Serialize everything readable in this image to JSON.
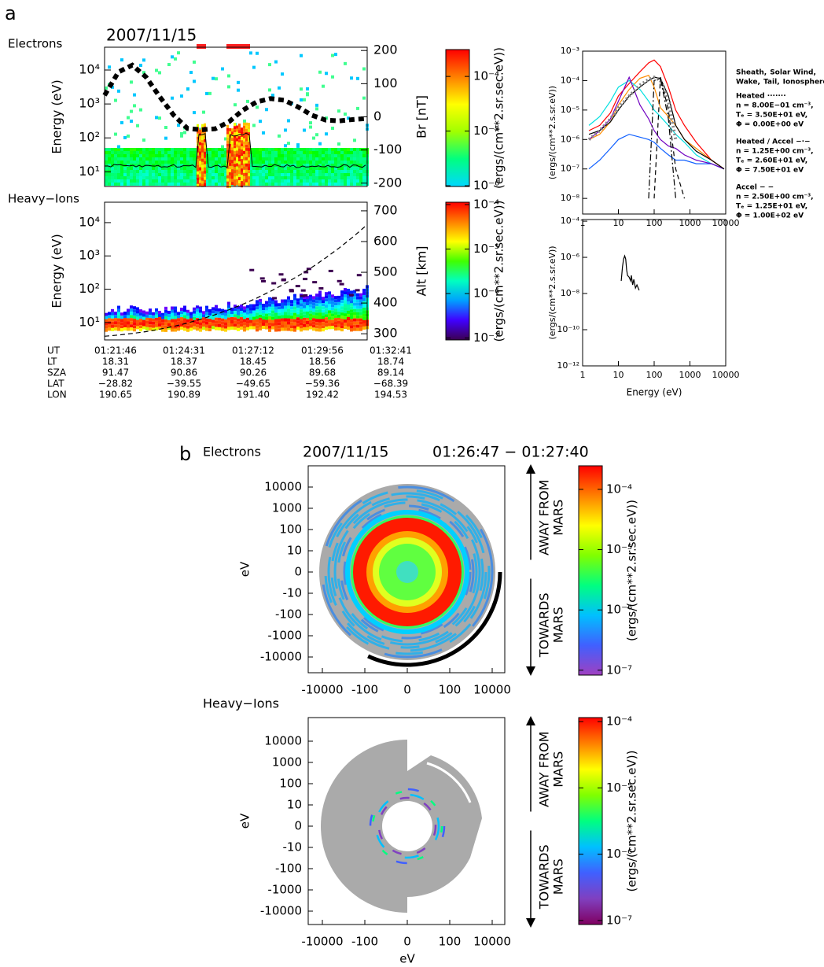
{
  "panel_labels": [
    "a",
    "b"
  ],
  "chart_data": [
    {
      "type": "spectrogram",
      "label": "Electrons",
      "title": "2007/11/15",
      "ylabel": "Energy (eV)",
      "log_scale": true,
      "ylim": [
        3.7,
        47000
      ],
      "yticks": [
        {
          "value": 10,
          "label": "10¹"
        },
        {
          "value": 100,
          "label": "10²"
        },
        {
          "value": 1000,
          "label": "10³"
        },
        {
          "value": 10000,
          "label": "10⁴"
        }
      ],
      "y2label": "Br [nT]",
      "y2lim": [
        -210,
        210
      ],
      "y2ticks": [
        -200,
        -100,
        0,
        100,
        200
      ],
      "series": [
        {
          "axis": "y2",
          "color": "#000000",
          "style": "thick-dotted",
          "values": [
            65,
            135,
            156,
            120,
            60,
            5,
            -35,
            -39,
            -36,
            -15,
            20,
            45,
            55,
            50,
            30,
            5,
            -10,
            -12,
            -8,
            -5
          ]
        }
      ],
      "colorbar": {
        "label": "(ergs/(cm**2.sr.sec.eV))",
        "clim": [
          9.7e-07,
          0.00031
        ],
        "colors": [
          "#00d8ff",
          "#00ff80",
          "#a0ff00",
          "#ffff00",
          "#ff8000",
          "#ff0000"
        ],
        "ticks": [
          {
            "value": 1e-06,
            "label": "10⁻⁶"
          },
          {
            "value": 1e-05,
            "label": "10⁻⁵"
          },
          {
            "value": 0.0001,
            "label": "10⁻⁴"
          }
        ]
      }
    },
    {
      "type": "spectrogram",
      "label": "Heavy−Ions",
      "ylabel": "Energy (eV)",
      "log_scale": true,
      "ylim": [
        3.0,
        41000
      ],
      "yticks": [
        {
          "value": 10,
          "label": "10¹"
        },
        {
          "value": 100,
          "label": "10²"
        },
        {
          "value": 1000,
          "label": "10³"
        },
        {
          "value": 10000,
          "label": "10⁴"
        }
      ],
      "y2label": "Alt [km]",
      "y2lim": [
        280,
        728
      ],
      "y2ticks": [
        300,
        400,
        500,
        600,
        700
      ],
      "series": [
        {
          "axis": "y2",
          "color": "#000000",
          "style": "dashed",
          "values": [
            292,
            296,
            301,
            307,
            315,
            324,
            335,
            348,
            362,
            378,
            396,
            416,
            438,
            462,
            488,
            516,
            547,
            580,
            616,
            655
          ]
        }
      ],
      "colorbar": {
        "label": "(ergs/(cm**2.sr.sec.eV))",
        "clim": [
          9.1e-08,
          0.000113
        ],
        "colors": [
          "#3c0050",
          "#4000ff",
          "#00a0ff",
          "#00ffc0",
          "#40ff00",
          "#ffff00",
          "#ff8000",
          "#ff0000"
        ],
        "ticks": [
          {
            "value": 1e-07,
            "label": "10⁻⁷"
          },
          {
            "value": 1e-06,
            "label": "10⁻⁶"
          },
          {
            "value": 1e-05,
            "label": "10⁻⁵"
          },
          {
            "value": 0.0001,
            "label": "10⁻⁴"
          }
        ]
      }
    },
    {
      "type": "line",
      "ylabel": "(ergs/(cm**2.s.sr.eV))",
      "log_scale": true,
      "xlim": [
        1,
        10000
      ],
      "ylim": [
        2.95e-09,
        0.001
      ],
      "xticks": [
        1,
        10,
        100,
        1000,
        10000
      ],
      "yticks": [
        {
          "value": 1e-08,
          "label": "10⁻⁸"
        },
        {
          "value": 1e-07,
          "label": "10⁻⁷"
        },
        {
          "value": 1e-06,
          "label": "10⁻⁶"
        },
        {
          "value": 1e-05,
          "label": "10⁻⁵"
        },
        {
          "value": 0.0001,
          "label": "10⁻⁴"
        },
        {
          "value": 0.001,
          "label": "10⁻³"
        }
      ],
      "x": [
        1.5,
        3,
        6,
        10,
        20,
        40,
        70,
        100,
        150,
        250,
        400,
        700,
        1500,
        4000,
        9000
      ],
      "series": [
        {
          "name": "Sheath,",
          "color": "#ff0000",
          "values": [
            2e-06,
            3e-06,
            8e-06,
            3e-05,
            8e-05,
            0.0002,
            0.0004,
            0.0005,
            0.0003,
            6e-05,
            1e-05,
            3e-06,
            8e-07,
            2e-07,
            1e-07
          ]
        },
        {
          "name": "Solar Wind,",
          "color": "#ff8c00",
          "values": [
            1e-06,
            1.5e-06,
            4e-06,
            1.5e-05,
            5e-05,
            0.00012,
            0.00015,
            6e-05,
            1.2e-05,
            6e-06,
            3e-06,
            1e-06,
            5e-07,
            2e-07,
            1e-07
          ]
        },
        {
          "name": "Wake,",
          "color": "#00e0e0",
          "values": [
            3e-06,
            6e-06,
            2e-05,
            6e-05,
            0.0001,
            5e-05,
            2e-05,
            1e-05,
            6e-06,
            3e-06,
            1.5e-06,
            8e-07,
            3e-07,
            1.5e-07,
            1e-07
          ]
        },
        {
          "name": "Tail,",
          "color": "#1060ff",
          "values": [
            1e-07,
            2e-07,
            5e-07,
            1e-06,
            1.5e-06,
            1.2e-06,
            1e-06,
            8e-07,
            5e-07,
            3e-07,
            2e-07,
            2e-07,
            1.5e-07,
            1.5e-07,
            1e-07
          ]
        },
        {
          "name": "Ionosphere",
          "color": "#7000c0",
          "values": [
            1e-06,
            2e-06,
            5e-06,
            2e-05,
            0.00013,
            1.5e-05,
            5e-06,
            2e-06,
            1e-06,
            6e-07,
            5e-07,
            3e-07,
            2e-07,
            1.5e-07,
            1e-07
          ]
        },
        {
          "color": "#000000",
          "style": "solid",
          "values": [
            1.5e-06,
            2e-06,
            4e-06,
            1e-05,
            3e-05,
            6e-05,
            0.0001,
            0.00013,
            0.00012,
            3e-05,
            3e-06,
            1e-06,
            4e-07,
            2e-07,
            1e-07
          ]
        },
        {
          "color": "#888888",
          "style": "dotted",
          "values": [
            1e-06,
            2e-06,
            5e-06,
            1.2e-05,
            3e-05,
            7e-05,
            0.00011,
            0.00013,
            0.0001,
            2e-05,
            1e-06,
            null,
            null,
            null,
            null
          ]
        },
        {
          "color": "#000000",
          "style": "dashdot",
          "values": [
            null,
            null,
            null,
            null,
            null,
            null,
            1e-08,
            0.0001,
            0.00012,
            5e-06,
            1e-08,
            null,
            null,
            null,
            null
          ]
        },
        {
          "color": "#000000",
          "style": "dashed",
          "values": [
            null,
            null,
            null,
            null,
            null,
            null,
            null,
            1e-08,
            0.00013,
            1e-05,
            1e-07,
            1e-08,
            null,
            null,
            null
          ]
        }
      ]
    },
    {
      "type": "line",
      "xlabel": "Energy (eV)",
      "ylabel": "(ergs/(cm**2.s.sr.eV))",
      "log_scale": true,
      "xlim": [
        1,
        10000
      ],
      "ylim": [
        1e-12,
        0.000123
      ],
      "xticks": [
        1,
        10,
        100,
        1000,
        10000
      ],
      "yticks": [
        {
          "value": 1e-12,
          "label": "10⁻¹²"
        },
        {
          "value": 1e-10,
          "label": "10⁻¹⁰"
        },
        {
          "value": 1e-08,
          "label": "10⁻⁸"
        },
        {
          "value": 1e-06,
          "label": "10⁻⁶"
        },
        {
          "value": 0.0001,
          "label": "10⁻⁴"
        }
      ],
      "x": [
        12,
        13,
        14,
        15,
        16,
        17,
        18,
        20,
        22,
        23,
        25,
        27,
        30,
        33,
        38
      ],
      "series": [
        {
          "color": "#000000",
          "style": "solid",
          "values": [
            5e-08,
            3e-07,
            8e-07,
            1.2e-06,
            8e-07,
            2e-07,
            1e-07,
            8e-08,
            5e-08,
            1e-07,
            3e-08,
            6e-08,
            2e-08,
            3e-08,
            1.5e-08
          ]
        }
      ]
    },
    {
      "type": "polar",
      "label": "Electrons",
      "title": "2007/11/15",
      "subtitle": "01:26:47 − 01:27:40",
      "ylabel": "eV",
      "yticks": [
        10000,
        1000,
        100,
        10,
        0,
        -10,
        -100,
        -1000,
        -10000
      ],
      "xticks": [
        -10000,
        -100,
        0,
        100,
        10000
      ],
      "colorbar": {
        "label": "(ergs/(cm**2.sr.sec.eV))",
        "clim": [
          8.3e-08,
          0.000246
        ],
        "colors": [
          "#a040c0",
          "#4060ff",
          "#00c0ff",
          "#00ff80",
          "#80ff00",
          "#ffff00",
          "#ff8000",
          "#ff0000"
        ],
        "ticks": [
          {
            "value": 1e-07,
            "label": "10⁻⁷"
          },
          {
            "value": 1e-06,
            "label": "10⁻⁶"
          },
          {
            "value": 1e-05,
            "label": "10⁻⁵"
          },
          {
            "value": 0.0001,
            "label": "10⁻⁴"
          }
        ]
      }
    },
    {
      "type": "polar",
      "label": "Heavy−Ions",
      "xlabel": "eV",
      "ylabel": "eV",
      "yticks": [
        10000,
        1000,
        100,
        10,
        0,
        -10,
        -100,
        -1000,
        -10000
      ],
      "xticks": [
        -10000,
        -100,
        0,
        100,
        10000
      ],
      "colorbar": {
        "label": "(ergs/(cm**2.sr.sec.eV))",
        "clim": [
          8.7e-08,
          0.000115
        ],
        "colors": [
          "#800060",
          "#8040c0",
          "#4060ff",
          "#00c0ff",
          "#00ff80",
          "#80ff00",
          "#ffff00",
          "#ff8000",
          "#ff0000"
        ],
        "ticks": [
          {
            "value": 1e-07,
            "label": "10⁻⁷"
          },
          {
            "value": 1e-06,
            "label": "10⁻⁶"
          },
          {
            "value": 1e-05,
            "label": "10⁻⁵"
          },
          {
            "value": 0.0001,
            "label": "10⁻⁴"
          }
        ]
      }
    }
  ],
  "orbit_table": {
    "rows": [
      [
        "UT",
        "01:21:46",
        "01:24:31",
        "01:27:12",
        "01:29:56",
        "01:32:41"
      ],
      [
        "LT",
        "18.31",
        "18.37",
        "18.45",
        "18.56",
        "18.74"
      ],
      [
        "SZA",
        "91.47",
        "90.86",
        "90.26",
        "89.68",
        "89.14"
      ],
      [
        "LAT",
        "−28.82",
        "−39.55",
        "−49.65",
        "−59.36",
        "−68.39"
      ],
      [
        "LON",
        "190.65",
        "190.89",
        "191.40",
        "192.42",
        "194.53"
      ]
    ]
  },
  "model_legend": [
    {
      "title": "Heated ·······",
      "lines": [
        "n = 8.00E−01 cm⁻³,",
        "Tₑ = 3.50E+01 eV,",
        "Φ = 0.00E+00 eV"
      ]
    },
    {
      "title": "Heated / Accel −·−",
      "lines": [
        "n = 1.25E+00 cm⁻³,",
        "Tₑ = 2.60E+01 eV,",
        "Φ = 7.50E+01 eV"
      ]
    },
    {
      "title": "Accel − −",
      "lines": [
        "n = 2.50E+00 cm⁻³,",
        "Tₑ = 1.25E+01 eV,",
        "Φ = 1.00E+02 eV"
      ]
    }
  ],
  "direction_labels": {
    "away": [
      "AWAY FROM",
      "MARS"
    ],
    "towards": [
      "TOWARDS",
      "MARS"
    ]
  }
}
